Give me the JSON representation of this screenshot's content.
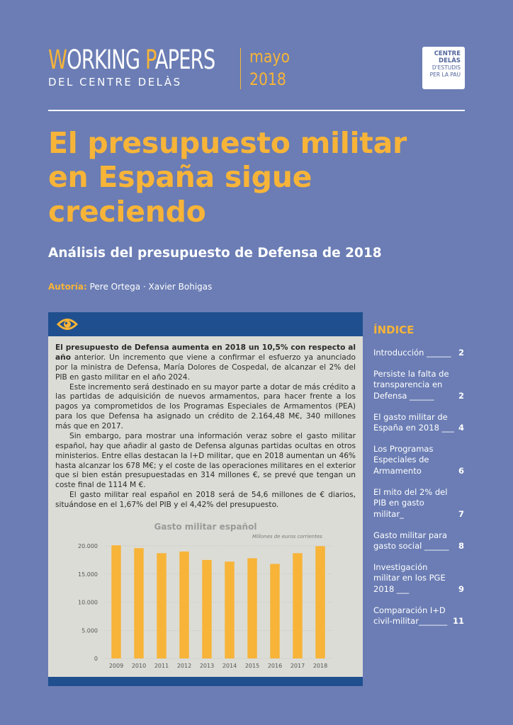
{
  "header": {
    "title_cap1": "W",
    "title_rest1": "ORKING ",
    "title_cap2": "P",
    "title_rest2": "APERS",
    "subtitle": "DEL CENTRE DELÀS",
    "month": "mayo",
    "year": "2018",
    "badge_line1": "CENTRE DELÀS",
    "badge_line2": "D'ESTUDIS",
    "badge_line3": "PER LA PAU"
  },
  "main_title": "El presupuesto militar en España sigue creciendo",
  "subtitle": "Análisis del presupuesto de Defensa de 2018",
  "authors": {
    "label": "Autoría:",
    "names": "Pere Ortega · Xavier Bohigas"
  },
  "summary": {
    "lead": "El presupuesto de Defensa aumenta en 2018 un 10,5% con respecto al año",
    "p1_rest": " anterior. Un incremento que viene a confirmar el esfuerzo ya anunciado por la ministra de Defensa, María Dolores de Cospedal, de alcanzar el 2% del PIB en gasto militar en el año 2024.",
    "p2": "Este incremento será destinado en su mayor parte a dotar de más crédito a las partidas de adquisición de nuevos armamentos, para hacer frente a los pagos ya comprometidos de los Programas Especiales de Armamentos (PEA) para los que Defensa ha asignado un crédito de 2.164,48 M€, 340 millones más que en 2017.",
    "p3": "Sin embargo, para mostrar una información veraz sobre el gasto militar español, hay que añadir al gasto de Defensa algunas partidas ocultas en otros ministerios. Entre ellas destacan la I+D militar, que en 2018 aumentan un 46% hasta alcanzar los 678 M€; y el coste de las operaciones militares en el exterior que si bien están presupuestadas en 314 millones €, se prevé que tengan un coste final de 1114 M €.",
    "p4": "El gasto militar real español en 2018 será de 54,6 millones de € diarios, situándose en el 1,67% del PIB y el 4,42% del presupuesto."
  },
  "chart_data": {
    "type": "bar",
    "title": "Gasto militar español",
    "unit_note": "Millones de euros corrientes",
    "categories": [
      "2009",
      "2010",
      "2011",
      "2012",
      "2013",
      "2014",
      "2015",
      "2016",
      "2017",
      "2018"
    ],
    "values": [
      20100,
      19600,
      18700,
      19000,
      17500,
      17200,
      17800,
      16800,
      18700,
      19950
    ],
    "ylim": [
      0,
      20000
    ],
    "yticks": [
      0,
      5000,
      10000,
      15000,
      20000
    ],
    "ytick_labels": [
      "0",
      "5.000",
      "10.000",
      "15.000",
      "20.000"
    ],
    "bar_color": "#f7b438",
    "grid": true
  },
  "index": {
    "title": "ÍNDICE",
    "items": [
      {
        "label": "Introducción ______",
        "page": "2"
      },
      {
        "label": "Persiste la falta de transparencia en Defensa ______",
        "page": "2"
      },
      {
        "label": "El gasto militar de España en 2018 ___",
        "page": "4"
      },
      {
        "label": "Los Programas Especiales de Armamento",
        "page": "6"
      },
      {
        "label": "El mito del 2% del PIB en gasto militar_",
        "page": "7"
      },
      {
        "label": "Gasto militar para gasto social ______",
        "page": "8"
      },
      {
        "label": "Investigación militar en los PGE 2018 ___",
        "page": "9"
      },
      {
        "label": "Comparación I+D civil-militar_______",
        "page": "11"
      }
    ]
  },
  "colors": {
    "background": "#6b7db4",
    "accent": "#f7b438",
    "box_band": "#1f4f8f",
    "box_bg": "#dcdcd6"
  }
}
